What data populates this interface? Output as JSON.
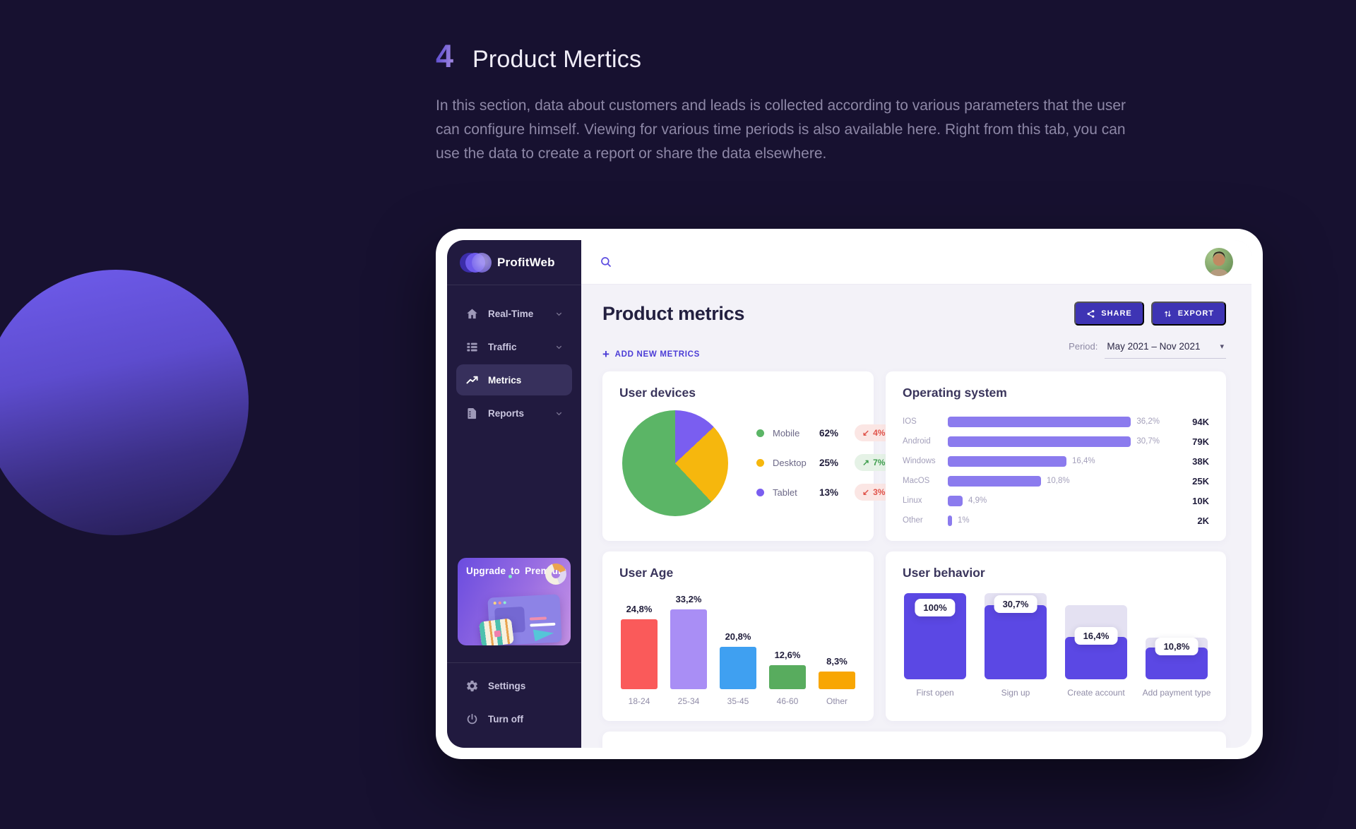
{
  "hero": {
    "number": "4",
    "title": "Product Mertics",
    "description": "In this section, data about customers and leads is collected according to various parameters that the user can configure himself. Viewing for various time periods is also available here. Right from this tab, you can use the data to create a report or share the data elsewhere."
  },
  "app": {
    "brand": "ProfitWeb",
    "nav": [
      {
        "label": "Real-Time",
        "icon": "home-icon",
        "active": false,
        "chevron": true
      },
      {
        "label": "Traffic",
        "icon": "traffic-list-icon",
        "active": false,
        "chevron": true
      },
      {
        "label": "Metrics",
        "icon": "metrics-trend-icon",
        "active": true,
        "chevron": false
      },
      {
        "label": "Reports",
        "icon": "reports-file-icon",
        "active": false,
        "chevron": true
      }
    ],
    "upgrade": {
      "label": "Upgrade to Premium"
    },
    "footer_nav": [
      {
        "label": "Settings",
        "icon": "gear-icon"
      },
      {
        "label": "Turn off",
        "icon": "power-icon"
      }
    ],
    "header": {
      "title": "Product metrics",
      "share_label": "SHARE",
      "export_label": "EXPORT",
      "add_new_label": "ADD NEW METRICS",
      "plus_sign": "+",
      "period_label": "Period:",
      "period_value": "May 2021 – Nov 2021",
      "caret": "▾"
    }
  },
  "colors": {
    "page_bg": "#171130",
    "sidebar_bg": "#211a3f",
    "accent_indigo": "#3e34b4",
    "accent_link": "#4b3cd6",
    "content_bg": "#f3f2f8",
    "badge_down_text": "#e0544b",
    "badge_up_text": "#3f9e4e",
    "os_bar": "#8b7bee",
    "funnel_fill": "#5b48e4",
    "funnel_track": "#e4e1f2"
  },
  "chart_data": [
    {
      "type": "pie",
      "title": "User devices",
      "slices": [
        {
          "label": "Mobile",
          "value": 62,
          "display": "62%",
          "color": "#5bb566",
          "change": "4%",
          "change_dir": "down",
          "change_arrow": "↙"
        },
        {
          "label": "Desktop",
          "value": 25,
          "display": "25%",
          "color": "#f6b70d",
          "change": "7%",
          "change_dir": "up",
          "change_arrow": "↗"
        },
        {
          "label": "Tablet",
          "value": 13,
          "display": "13%",
          "color": "#7a5ef0",
          "change": "3%",
          "change_dir": "down",
          "change_arrow": "↙"
        }
      ],
      "draw_order": [
        2,
        1,
        0
      ],
      "legend_position": "right"
    },
    {
      "type": "bar",
      "orientation": "horizontal",
      "title": "Operating system",
      "categories": [
        "IOS",
        "Android",
        "Windows",
        "MacOS",
        "Linux",
        "Other"
      ],
      "values_pct": [
        36.2,
        30.7,
        16.4,
        10.8,
        4.9,
        1
      ],
      "pct_labels": [
        "36,2%",
        "30,7%",
        "16,4%",
        "10,8%",
        "4,9%",
        "1%"
      ],
      "totals": [
        "94K",
        "79K",
        "38K",
        "25K",
        "10K",
        "2K"
      ],
      "bar_color": "#8b7bee",
      "bar_width_rel": [
        100,
        91,
        56,
        44,
        7,
        2
      ]
    },
    {
      "type": "bar",
      "orientation": "vertical",
      "title": "User Age",
      "categories": [
        "18-24",
        "25-34",
        "35-45",
        "46-60",
        "Other"
      ],
      "values_pct": [
        24.8,
        33.2,
        20.8,
        12.6,
        8.3
      ],
      "labels": [
        "24,8%",
        "33,2%",
        "20,8%",
        "12,6%",
        "8,3%"
      ],
      "colors": [
        "#fa5a5a",
        "#a98ef5",
        "#3fa0f1",
        "#58ac5e",
        "#f8a603"
      ],
      "bar_height_rel": [
        88,
        100,
        53,
        30,
        22
      ]
    },
    {
      "type": "bar",
      "subtype": "funnel",
      "title": "User behavior",
      "categories": [
        "First open",
        "Sign up",
        "Create account",
        "Add payment type"
      ],
      "values_pct": [
        100,
        30.7,
        16.4,
        10.8
      ],
      "labels": [
        "100%",
        "30,7%",
        "16,4%",
        "10,8%"
      ],
      "fill_color": "#5b48e4",
      "track_color": "#e4e1f2",
      "track_height_rel": [
        100,
        100,
        86,
        48
      ],
      "fill_height_rel": [
        100,
        86,
        49,
        37
      ]
    }
  ]
}
